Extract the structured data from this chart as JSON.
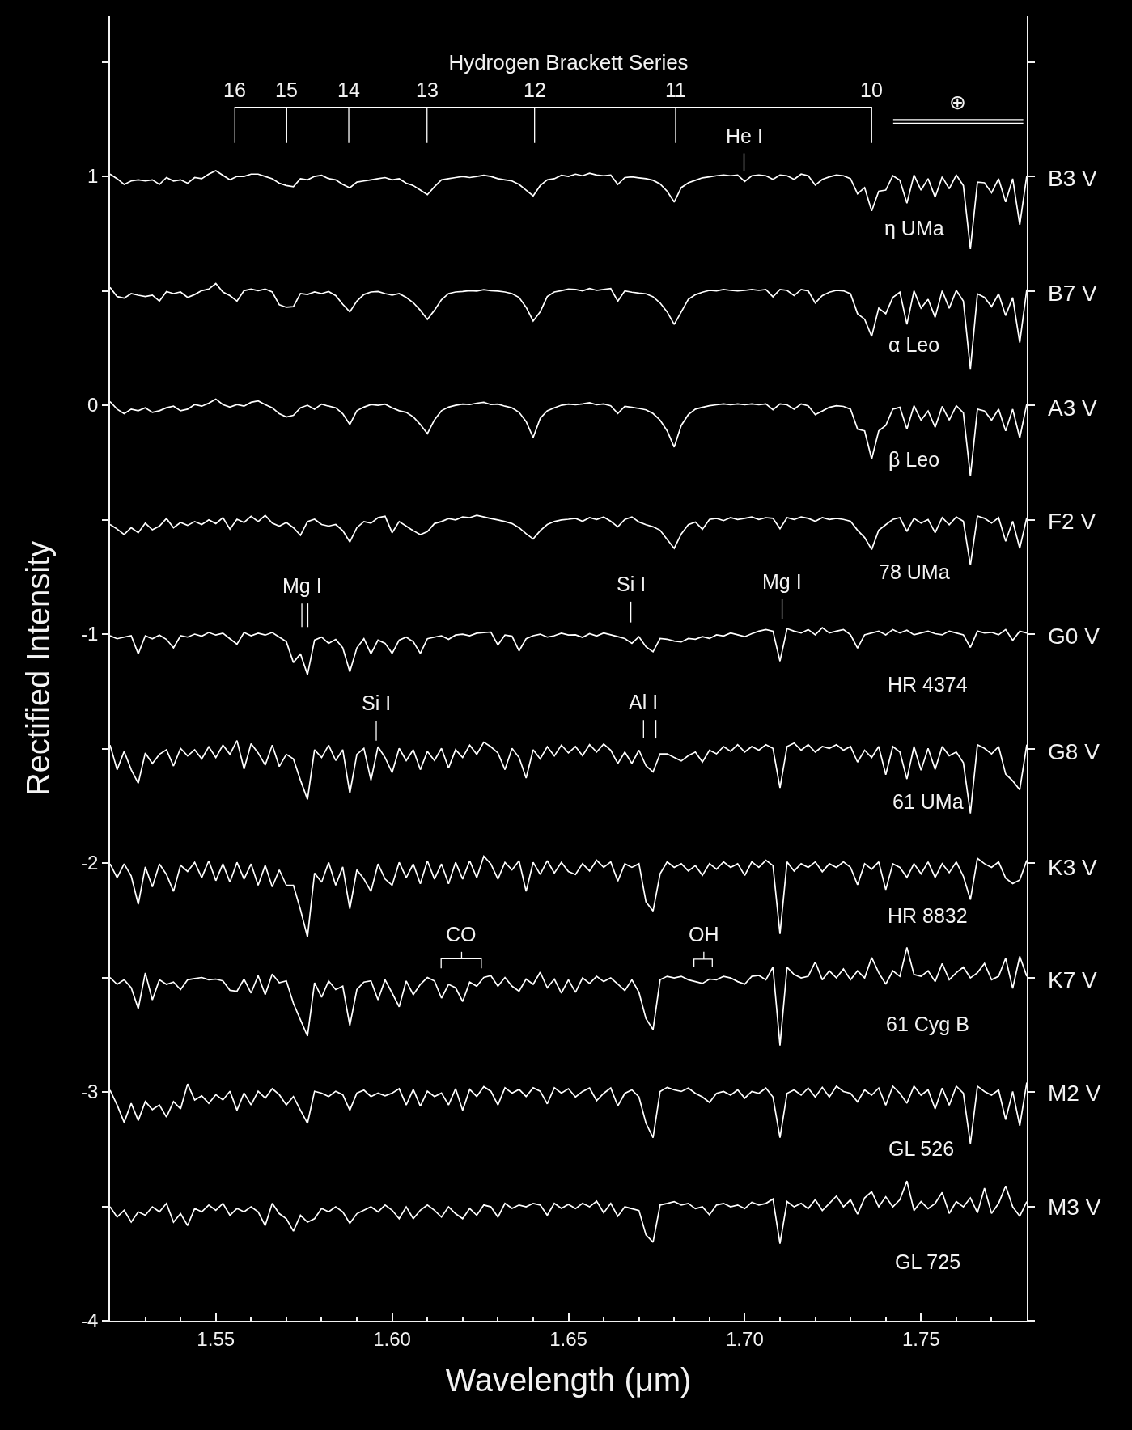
{
  "chart_data": {
    "type": "line",
    "title": "Hydrogen Brackett Series",
    "xlabel": "Wavelength (μm)",
    "ylabel": "Rectified Intensity",
    "xlim": [
      1.52,
      1.78
    ],
    "ylim": [
      -4,
      1.7
    ],
    "xticks": [
      {
        "value": 1.53,
        "label": null
      },
      {
        "value": 1.54,
        "label": null
      },
      1.55,
      {
        "value": 1.56,
        "label": null
      },
      {
        "value": 1.57,
        "label": null
      },
      {
        "value": 1.58,
        "label": null
      },
      {
        "value": 1.59,
        "label": null
      },
      {
        "value": 1.6,
        "label": "1.60"
      },
      {
        "value": 1.61,
        "label": null
      },
      {
        "value": 1.62,
        "label": null
      },
      {
        "value": 1.63,
        "label": null
      },
      {
        "value": 1.64,
        "label": null
      },
      1.65,
      {
        "value": 1.66,
        "label": null
      },
      {
        "value": 1.67,
        "label": null
      },
      {
        "value": 1.68,
        "label": null
      },
      {
        "value": 1.69,
        "label": null
      },
      {
        "value": 1.7,
        "label": "1.70"
      },
      {
        "value": 1.71,
        "label": null
      },
      {
        "value": 1.72,
        "label": null
      },
      {
        "value": 1.73,
        "label": null
      },
      {
        "value": 1.74,
        "label": null
      },
      1.75,
      {
        "value": 1.76,
        "label": null
      },
      {
        "value": 1.77,
        "label": null
      }
    ],
    "yticks": [
      -4,
      {
        "value": -3.5,
        "label": null
      },
      -3,
      {
        "value": -2.5,
        "label": null
      },
      -2,
      {
        "value": -1.5,
        "label": null
      },
      -1,
      {
        "value": -0.5,
        "label": null
      },
      0,
      {
        "value": 0.5,
        "label": null
      },
      1,
      {
        "value": 1.5,
        "label": null
      }
    ],
    "line_style": "solid",
    "legend": "right",
    "x": [
      1.52,
      1.522,
      1.524,
      1.526,
      1.528,
      1.53,
      1.532,
      1.534,
      1.536,
      1.538,
      1.54,
      1.542,
      1.544,
      1.546,
      1.548,
      1.55,
      1.552,
      1.554,
      1.556,
      1.558,
      1.56,
      1.562,
      1.564,
      1.566,
      1.568,
      1.57,
      1.572,
      1.574,
      1.576,
      1.578,
      1.58,
      1.582,
      1.584,
      1.586,
      1.588,
      1.59,
      1.592,
      1.594,
      1.596,
      1.598,
      1.6,
      1.602,
      1.604,
      1.606,
      1.608,
      1.61,
      1.612,
      1.614,
      1.616,
      1.618,
      1.62,
      1.622,
      1.624,
      1.626,
      1.628,
      1.63,
      1.632,
      1.634,
      1.636,
      1.638,
      1.64,
      1.642,
      1.644,
      1.646,
      1.648,
      1.65,
      1.652,
      1.654,
      1.656,
      1.658,
      1.66,
      1.662,
      1.664,
      1.666,
      1.668,
      1.67,
      1.672,
      1.674,
      1.676,
      1.678,
      1.68,
      1.682,
      1.684,
      1.686,
      1.688,
      1.69,
      1.692,
      1.694,
      1.696,
      1.698,
      1.7,
      1.702,
      1.704,
      1.706,
      1.708,
      1.71,
      1.712,
      1.714,
      1.716,
      1.718,
      1.72,
      1.722,
      1.724,
      1.726,
      1.728,
      1.73,
      1.732,
      1.734,
      1.736,
      1.738,
      1.74,
      1.742,
      1.744,
      1.746,
      1.748,
      1.75,
      1.752,
      1.754,
      1.756,
      1.758,
      1.76,
      1.762,
      1.764,
      1.766,
      1.768,
      1.77,
      1.772,
      1.774,
      1.776,
      1.778,
      1.78
    ],
    "series": [
      {
        "name": "B3 V",
        "color": "#ffffff",
        "values": [
          1.01,
          0.99,
          0.965,
          0.98,
          0.985,
          0.98,
          0.985,
          0.965,
          0.995,
          0.98,
          0.985,
          0.97,
          0.995,
          0.99,
          1.01,
          1.025,
          1.005,
          0.985,
          1.0,
          1.0,
          1.01,
          1.01,
          1.0,
          0.99,
          0.97,
          0.96,
          0.955,
          0.99,
          0.985,
          1.0,
          1.005,
          0.99,
          0.985,
          0.965,
          0.95,
          0.975,
          0.98,
          0.985,
          0.99,
          0.995,
          0.985,
          0.99,
          0.97,
          0.96,
          0.94,
          0.92,
          0.955,
          0.985,
          0.99,
          0.995,
          1.0,
          0.995,
          1.0,
          1.005,
          1.0,
          0.99,
          0.985,
          0.98,
          0.965,
          0.94,
          0.915,
          0.96,
          0.985,
          0.99,
          1.005,
          1.0,
          1.01,
          1.003,
          1.014,
          1.006,
          1.003,
          1.006,
          0.965,
          0.995,
          0.998,
          0.994,
          0.99,
          0.983,
          0.967,
          0.935,
          0.888,
          0.951,
          0.972,
          0.983,
          0.994,
          0.998,
          1.003,
          1.006,
          1.003,
          1.006,
          0.978,
          1.003,
          1.006,
          1.003,
          0.987,
          1.006,
          1.003,
          0.987,
          1.01,
          1.003,
          0.962,
          0.987,
          0.998,
          1.006,
          1.003,
          0.99,
          0.924,
          0.951,
          0.849,
          0.935,
          0.94,
          1.003,
          0.983,
          0.883,
          1.006,
          0.94,
          0.99,
          0.909,
          0.998,
          0.946,
          1.006,
          0.96,
          0.683,
          0.975,
          0.972,
          0.928,
          0.99,
          0.888,
          0.99,
          0.789,
          1.003
        ]
      },
      {
        "name": "B7 V",
        "color": "#ffffff",
        "values": [
          0.515,
          0.475,
          0.468,
          0.488,
          0.481,
          0.475,
          0.481,
          0.455,
          0.497,
          0.488,
          0.495,
          0.471,
          0.484,
          0.501,
          0.508,
          0.532,
          0.495,
          0.479,
          0.455,
          0.501,
          0.508,
          0.501,
          0.508,
          0.495,
          0.439,
          0.428,
          0.431,
          0.488,
          0.484,
          0.495,
          0.488,
          0.497,
          0.479,
          0.441,
          0.408,
          0.455,
          0.484,
          0.495,
          0.497,
          0.488,
          0.481,
          0.488,
          0.471,
          0.448,
          0.415,
          0.375,
          0.415,
          0.461,
          0.488,
          0.495,
          0.497,
          0.501,
          0.499,
          0.505,
          0.501,
          0.499,
          0.495,
          0.488,
          0.471,
          0.428,
          0.368,
          0.408,
          0.475,
          0.495,
          0.501,
          0.508,
          0.506,
          0.5,
          0.51,
          0.502,
          0.506,
          0.51,
          0.455,
          0.5,
          0.494,
          0.49,
          0.487,
          0.474,
          0.447,
          0.408,
          0.353,
          0.408,
          0.463,
          0.483,
          0.494,
          0.502,
          0.5,
          0.506,
          0.502,
          0.5,
          0.502,
          0.506,
          0.502,
          0.506,
          0.474,
          0.506,
          0.502,
          0.479,
          0.506,
          0.5,
          0.447,
          0.479,
          0.494,
          0.502,
          0.5,
          0.487,
          0.4,
          0.376,
          0.301,
          0.424,
          0.4,
          0.471,
          0.494,
          0.353,
          0.5,
          0.424,
          0.463,
          0.384,
          0.5,
          0.424,
          0.502,
          0.455,
          0.159,
          0.487,
          0.471,
          0.431,
          0.487,
          0.392,
          0.471,
          0.274,
          0.506
        ]
      },
      {
        "name": "A3 V",
        "color": "#ffffff",
        "values": [
          0.016,
          -0.017,
          -0.037,
          -0.017,
          -0.024,
          -0.011,
          -0.031,
          -0.024,
          -0.011,
          -0.004,
          -0.024,
          -0.017,
          0.003,
          -0.004,
          0.009,
          0.027,
          0.003,
          -0.008,
          0.003,
          -0.004,
          0.013,
          0.019,
          0.003,
          -0.011,
          -0.037,
          -0.051,
          -0.044,
          -0.011,
          0,
          -0.017,
          0.005,
          -0.004,
          -0.011,
          -0.037,
          -0.084,
          -0.024,
          -0.008,
          0.003,
          0,
          0.005,
          -0.011,
          -0.024,
          -0.031,
          -0.051,
          -0.084,
          -0.124,
          -0.064,
          -0.024,
          -0.008,
          0,
          0.005,
          0.003,
          0.009,
          0.013,
          0.003,
          0.005,
          -0.004,
          -0.011,
          -0.031,
          -0.071,
          -0.141,
          -0.057,
          -0.024,
          -0.011,
          0,
          0.005,
          0.002,
          0.006,
          0.011,
          0.002,
          0.006,
          -0.002,
          -0.036,
          -0.005,
          -0.009,
          -0.014,
          -0.02,
          -0.036,
          -0.065,
          -0.112,
          -0.183,
          -0.088,
          -0.041,
          -0.017,
          -0.009,
          -0.002,
          0.002,
          0.006,
          0.002,
          0.006,
          0.002,
          0.006,
          0.002,
          0.006,
          -0.02,
          0.006,
          0.002,
          -0.017,
          0.006,
          -0.002,
          -0.041,
          -0.025,
          -0.009,
          -0.002,
          -0.005,
          -0.017,
          -0.104,
          -0.112,
          -0.235,
          -0.112,
          -0.088,
          -0.017,
          -0.009,
          -0.104,
          -0.002,
          -0.065,
          -0.025,
          -0.096,
          -0.005,
          -0.065,
          -0.002,
          -0.033,
          -0.31,
          -0.017,
          -0.025,
          -0.065,
          -0.017,
          -0.112,
          -0.017,
          -0.143,
          0.006
        ]
      },
      {
        "name": "F2 V",
        "color": "#ffffff",
        "values": [
          -0.521,
          -0.541,
          -0.565,
          -0.535,
          -0.557,
          -0.515,
          -0.544,
          -0.528,
          -0.495,
          -0.535,
          -0.512,
          -0.525,
          -0.508,
          -0.521,
          -0.501,
          -0.517,
          -0.491,
          -0.541,
          -0.498,
          -0.512,
          -0.485,
          -0.508,
          -0.481,
          -0.515,
          -0.528,
          -0.512,
          -0.535,
          -0.568,
          -0.508,
          -0.498,
          -0.521,
          -0.528,
          -0.521,
          -0.548,
          -0.597,
          -0.535,
          -0.508,
          -0.515,
          -0.491,
          -0.485,
          -0.557,
          -0.508,
          -0.528,
          -0.548,
          -0.565,
          -0.552,
          -0.517,
          -0.508,
          -0.495,
          -0.501,
          -0.488,
          -0.491,
          -0.481,
          -0.488,
          -0.495,
          -0.501,
          -0.508,
          -0.517,
          -0.535,
          -0.561,
          -0.584,
          -0.548,
          -0.521,
          -0.508,
          -0.501,
          -0.498,
          -0.494,
          -0.507,
          -0.491,
          -0.499,
          -0.488,
          -0.507,
          -0.531,
          -0.499,
          -0.488,
          -0.51,
          -0.522,
          -0.531,
          -0.546,
          -0.586,
          -0.625,
          -0.562,
          -0.522,
          -0.51,
          -0.542,
          -0.499,
          -0.494,
          -0.504,
          -0.491,
          -0.499,
          -0.494,
          -0.488,
          -0.499,
          -0.491,
          -0.494,
          -0.539,
          -0.491,
          -0.499,
          -0.488,
          -0.494,
          -0.507,
          -0.491,
          -0.499,
          -0.494,
          -0.499,
          -0.507,
          -0.546,
          -0.578,
          -0.63,
          -0.546,
          -0.522,
          -0.499,
          -0.491,
          -0.551,
          -0.494,
          -0.515,
          -0.499,
          -0.557,
          -0.491,
          -0.522,
          -0.488,
          -0.507,
          -0.699,
          -0.484,
          -0.494,
          -0.515,
          -0.491,
          -0.594,
          -0.507,
          -0.625,
          -0.491
        ]
      },
      {
        "name": "G0 V",
        "color": "#ffffff",
        "values": [
          -1.007,
          -1.02,
          -1.013,
          -1.007,
          -1.086,
          -1.007,
          -1.02,
          -1.004,
          -1.023,
          -1.06,
          -1.007,
          -1.013,
          -1.0,
          -1.009,
          -0.993,
          -1.004,
          -0.996,
          -1.02,
          -1.044,
          -0.993,
          -1.007,
          -0.996,
          -1.004,
          -0.993,
          -1.013,
          -1.033,
          -1.124,
          -1.086,
          -1.177,
          -1.026,
          -1.013,
          -1.04,
          -1.023,
          -1.06,
          -1.164,
          -1.06,
          -1.02,
          -1.086,
          -1.026,
          -1.04,
          -1.084,
          -1.026,
          -1.013,
          -1.033,
          -1.084,
          -1.02,
          -1.013,
          -1.007,
          -1.023,
          -1.004,
          -1.0,
          -1.007,
          -0.996,
          -0.993,
          -0.991,
          -1.047,
          -1.004,
          -1.009,
          -1.073,
          -1.02,
          -1.007,
          -1.0,
          -1.013,
          -1.007,
          -0.996,
          -1.004,
          -1.003,
          -1.014,
          -0.998,
          -1.008,
          -0.995,
          -1.003,
          -1.011,
          -1.019,
          -1.04,
          -1.011,
          -1.055,
          -1.077,
          -1.019,
          -1.022,
          -1.03,
          -1.034,
          -1.019,
          -1.022,
          -1.011,
          -1.019,
          -1.003,
          -1.008,
          -0.995,
          -1.003,
          -1.011,
          -0.998,
          -0.987,
          -0.98,
          -0.987,
          -1.118,
          -0.976,
          -0.987,
          -0.995,
          -0.98,
          -1.003,
          -0.972,
          -0.995,
          -0.987,
          -0.98,
          -1.003,
          -1.061,
          -1.003,
          -0.995,
          -0.987,
          -1.003,
          -0.98,
          -0.995,
          -0.983,
          -1.003,
          -0.995,
          -0.987,
          -0.998,
          -1.003,
          -0.987,
          -0.995,
          -1.003,
          -1.058,
          -0.987,
          -0.995,
          -0.992,
          -1.003,
          -0.98,
          -1.027,
          -0.987,
          -0.995
        ]
      },
      {
        "name": "G8 V",
        "color": "#ffffff",
        "values": [
          -1.485,
          -1.592,
          -1.512,
          -1.592,
          -1.651,
          -1.519,
          -1.565,
          -1.525,
          -1.505,
          -1.576,
          -1.499,
          -1.532,
          -1.505,
          -1.545,
          -1.492,
          -1.539,
          -1.485,
          -1.525,
          -1.465,
          -1.589,
          -1.479,
          -1.519,
          -1.572,
          -1.485,
          -1.578,
          -1.525,
          -1.545,
          -1.638,
          -1.722,
          -1.505,
          -1.539,
          -1.485,
          -1.552,
          -1.505,
          -1.695,
          -1.525,
          -1.499,
          -1.638,
          -1.492,
          -1.539,
          -1.605,
          -1.499,
          -1.552,
          -1.505,
          -1.592,
          -1.512,
          -1.552,
          -1.499,
          -1.585,
          -1.505,
          -1.539,
          -1.485,
          -1.525,
          -1.472,
          -1.492,
          -1.519,
          -1.592,
          -1.499,
          -1.539,
          -1.629,
          -1.505,
          -1.545,
          -1.492,
          -1.532,
          -1.485,
          -1.519,
          -1.491,
          -1.531,
          -1.483,
          -1.515,
          -1.48,
          -1.507,
          -1.565,
          -1.515,
          -1.565,
          -1.507,
          -1.575,
          -1.602,
          -1.523,
          -1.523,
          -1.539,
          -1.554,
          -1.531,
          -1.515,
          -1.559,
          -1.507,
          -1.523,
          -1.491,
          -1.512,
          -1.483,
          -1.515,
          -1.491,
          -1.507,
          -1.483,
          -1.499,
          -1.672,
          -1.491,
          -1.476,
          -1.507,
          -1.483,
          -1.515,
          -1.491,
          -1.499,
          -1.483,
          -1.507,
          -1.491,
          -1.559,
          -1.507,
          -1.539,
          -1.491,
          -1.614,
          -1.491,
          -1.515,
          -1.633,
          -1.491,
          -1.594,
          -1.499,
          -1.591,
          -1.491,
          -1.531,
          -1.515,
          -1.562,
          -1.783,
          -1.483,
          -1.499,
          -1.523,
          -1.491,
          -1.611,
          -1.641,
          -1.68,
          -1.483
        ]
      },
      {
        "name": "K3 V",
        "color": "#ffffff",
        "values": [
          -2.004,
          -2.064,
          -2.004,
          -2.057,
          -2.18,
          -2.017,
          -2.104,
          -2.004,
          -2.05,
          -2.124,
          -2.01,
          -2.037,
          -1.997,
          -2.064,
          -1.99,
          -2.077,
          -2.004,
          -2.084,
          -1.997,
          -2.07,
          -2.004,
          -2.097,
          -2.01,
          -2.104,
          -2.03,
          -2.097,
          -2.097,
          -2.204,
          -2.323,
          -2.044,
          -2.084,
          -1.997,
          -2.097,
          -2.017,
          -2.2,
          -2.03,
          -2.07,
          -2.124,
          -2.004,
          -2.07,
          -2.097,
          -1.997,
          -2.064,
          -2.004,
          -2.091,
          -1.99,
          -2.07,
          -2.004,
          -2.091,
          -1.997,
          -2.07,
          -1.99,
          -2.064,
          -1.97,
          -2.004,
          -2.07,
          -1.997,
          -2.03,
          -1.99,
          -2.124,
          -1.997,
          -2.05,
          -1.99,
          -2.044,
          -1.997,
          -2.037,
          -2.05,
          -2.003,
          -2.035,
          -1.988,
          -2.019,
          -1.995,
          -2.079,
          -2.003,
          -2.019,
          -2.003,
          -2.17,
          -2.21,
          -2.047,
          -1.995,
          -2.019,
          -2.003,
          -2.035,
          -2.011,
          -2.054,
          -2.003,
          -2.027,
          -1.995,
          -2.019,
          -2.003,
          -2.054,
          -1.995,
          -2.019,
          -1.988,
          -2.011,
          -2.31,
          -1.995,
          -2.035,
          -2.003,
          -2.019,
          -1.995,
          -2.038,
          -2.003,
          -2.019,
          -1.995,
          -2.019,
          -2.095,
          -2.003,
          -2.027,
          -1.995,
          -2.117,
          -2.003,
          -2.019,
          -2.063,
          -2.003,
          -2.047,
          -1.995,
          -2.063,
          -2.003,
          -2.042,
          -1.995,
          -2.058,
          -2.16,
          -1.98,
          -2.003,
          -2.019,
          -1.995,
          -2.066,
          -2.09,
          -2.074,
          -1.988
        ]
      },
      {
        "name": "K7 V",
        "color": "#ffffff",
        "values": [
          -2.5,
          -2.53,
          -2.51,
          -2.545,
          -2.636,
          -2.48,
          -2.598,
          -2.51,
          -2.53,
          -2.52,
          -2.553,
          -2.51,
          -2.505,
          -2.5,
          -2.51,
          -2.507,
          -2.515,
          -2.556,
          -2.56,
          -2.507,
          -2.568,
          -2.492,
          -2.575,
          -2.485,
          -2.523,
          -2.515,
          -2.613,
          -2.685,
          -2.756,
          -2.523,
          -2.586,
          -2.515,
          -2.553,
          -2.538,
          -2.71,
          -2.553,
          -2.52,
          -2.515,
          -2.598,
          -2.51,
          -2.568,
          -2.628,
          -2.515,
          -2.575,
          -2.53,
          -2.5,
          -2.515,
          -2.59,
          -2.53,
          -2.545,
          -2.605,
          -2.52,
          -2.538,
          -2.5,
          -2.492,
          -2.538,
          -2.5,
          -2.538,
          -2.56,
          -2.507,
          -2.53,
          -2.477,
          -2.545,
          -2.507,
          -2.568,
          -2.51,
          -2.565,
          -2.502,
          -2.526,
          -2.495,
          -2.518,
          -2.502,
          -2.529,
          -2.557,
          -2.51,
          -2.565,
          -2.68,
          -2.728,
          -2.51,
          -2.495,
          -2.502,
          -2.495,
          -2.51,
          -2.518,
          -2.526,
          -2.507,
          -2.51,
          -2.495,
          -2.502,
          -2.518,
          -2.529,
          -2.495,
          -2.491,
          -2.51,
          -2.455,
          -2.797,
          -2.455,
          -2.487,
          -2.502,
          -2.495,
          -2.432,
          -2.51,
          -2.471,
          -2.502,
          -2.463,
          -2.51,
          -2.471,
          -2.502,
          -2.413,
          -2.479,
          -2.529,
          -2.471,
          -2.495,
          -2.369,
          -2.487,
          -2.495,
          -2.471,
          -2.518,
          -2.439,
          -2.51,
          -2.479,
          -2.455,
          -2.502,
          -2.479,
          -2.439,
          -2.51,
          -2.495,
          -2.416,
          -2.548,
          -2.408,
          -2.495
        ]
      },
      {
        "name": "M2 V",
        "color": "#ffffff",
        "values": [
          -2.992,
          -3.057,
          -3.133,
          -3.05,
          -3.125,
          -3.042,
          -3.077,
          -3.057,
          -3.11,
          -3.042,
          -3.074,
          -2.965,
          -3.035,
          -3.017,
          -3.05,
          -3.012,
          -3.035,
          -2.997,
          -3.08,
          -3.005,
          -3.057,
          -2.997,
          -3.027,
          -2.986,
          -3.012,
          -3.057,
          -3.02,
          -3.08,
          -3.137,
          -2.997,
          -3.005,
          -3.02,
          -2.997,
          -3.012,
          -3.08,
          -3.005,
          -2.992,
          -3.02,
          -3.005,
          -3.017,
          -3.005,
          -2.986,
          -3.057,
          -2.989,
          -3.062,
          -2.997,
          -3.02,
          -3.005,
          -3.057,
          -2.986,
          -3.08,
          -2.989,
          -3.02,
          -2.977,
          -2.997,
          -3.057,
          -2.982,
          -3.005,
          -2.989,
          -3.02,
          -2.982,
          -2.997,
          -3.052,
          -2.982,
          -3.005,
          -2.986,
          -3.022,
          -2.998,
          -2.983,
          -3.038,
          -3.006,
          -2.983,
          -3.061,
          -3.006,
          -2.991,
          -3.022,
          -3.137,
          -3.2,
          -2.998,
          -2.98,
          -2.991,
          -2.998,
          -2.983,
          -3.006,
          -3.022,
          -3.046,
          -3.006,
          -2.998,
          -3.014,
          -2.991,
          -3.027,
          -2.998,
          -3.006,
          -2.983,
          -3.022,
          -3.2,
          -3.006,
          -2.991,
          -3.014,
          -2.983,
          -3.022,
          -2.98,
          -3.022,
          -2.975,
          -2.998,
          -3.006,
          -3.043,
          -2.991,
          -3.014,
          -2.983,
          -3.058,
          -2.975,
          -3.006,
          -3.049,
          -2.975,
          -3.014,
          -2.991,
          -3.074,
          -2.983,
          -3.058,
          -2.975,
          -3.006,
          -3.227,
          -2.975,
          -2.998,
          -3.014,
          -2.991,
          -3.121,
          -2.998,
          -3.148,
          -2.959
        ]
      },
      {
        "name": "M3 V",
        "color": "#ffffff",
        "values": [
          -3.502,
          -3.547,
          -3.517,
          -3.569,
          -3.524,
          -3.539,
          -3.502,
          -3.524,
          -3.487,
          -3.569,
          -3.532,
          -3.584,
          -3.509,
          -3.524,
          -3.494,
          -3.517,
          -3.487,
          -3.539,
          -3.509,
          -3.524,
          -3.502,
          -3.524,
          -3.584,
          -3.487,
          -3.532,
          -3.554,
          -3.608,
          -3.539,
          -3.569,
          -3.554,
          -3.509,
          -3.524,
          -3.502,
          -3.524,
          -3.574,
          -3.532,
          -3.517,
          -3.502,
          -3.524,
          -3.494,
          -3.517,
          -3.554,
          -3.502,
          -3.554,
          -3.517,
          -3.494,
          -3.517,
          -3.547,
          -3.502,
          -3.532,
          -3.554,
          -3.509,
          -3.539,
          -3.494,
          -3.502,
          -3.547,
          -3.487,
          -3.509,
          -3.494,
          -3.502,
          -3.487,
          -3.494,
          -3.539,
          -3.487,
          -3.509,
          -3.491,
          -3.51,
          -3.487,
          -3.502,
          -3.477,
          -3.528,
          -3.487,
          -3.543,
          -3.502,
          -3.51,
          -3.518,
          -3.625,
          -3.657,
          -3.494,
          -3.487,
          -3.479,
          -3.494,
          -3.487,
          -3.51,
          -3.502,
          -3.537,
          -3.494,
          -3.487,
          -3.502,
          -3.494,
          -3.51,
          -3.482,
          -3.494,
          -3.487,
          -3.468,
          -3.663,
          -3.479,
          -3.502,
          -3.487,
          -3.51,
          -3.471,
          -3.518,
          -3.487,
          -3.455,
          -3.502,
          -3.471,
          -3.534,
          -3.463,
          -3.436,
          -3.502,
          -3.458,
          -3.502,
          -3.471,
          -3.389,
          -3.518,
          -3.479,
          -3.51,
          -3.487,
          -3.439,
          -3.531,
          -3.479,
          -3.502,
          -3.463,
          -3.528,
          -3.42,
          -3.531,
          -3.487,
          -3.411,
          -3.502,
          -3.543,
          -3.479
        ]
      },
      {
        "color": "#ffffff",
        "x": [
          1.5554,
          1.5554,
          1.736,
          1.736,
          null,
          1.5701,
          1.5701,
          null,
          1.5877,
          1.5877,
          null,
          1.6099,
          1.6099,
          null,
          1.6404,
          1.6404,
          null,
          1.6804,
          1.6804
        ],
        "values": [
          1.146,
          1.302,
          1.302,
          1.146,
          null,
          1.302,
          1.146,
          null,
          1.302,
          1.146,
          null,
          1.302,
          1.146,
          null,
          1.302,
          1.146,
          null,
          1.302,
          1.146
        ]
      },
      {
        "color": "#ffffff",
        "x": [
          1.6998,
          1.6998
        ],
        "values": [
          1.022,
          1.101
        ]
      },
      {
        "color": "#ffffff",
        "x": [
          1.7421,
          1.7603,
          1.779,
          null,
          1.7421,
          1.779
        ],
        "values": [
          1.248,
          1.248,
          1.248,
          null,
          1.232,
          1.232
        ]
      },
      {
        "color": "#ffffff",
        "x": [
          1.5744,
          1.5744,
          null,
          1.5761,
          1.5761
        ],
        "values": [
          -0.866,
          -0.969,
          null,
          -0.866,
          -0.969
        ]
      },
      {
        "color": "#ffffff",
        "x": [
          1.6677,
          1.6677
        ],
        "values": [
          -0.858,
          -0.949
        ]
      },
      {
        "color": "#ffffff",
        "x": [
          1.7106,
          1.7106
        ],
        "values": [
          -0.847,
          -0.933
        ]
      },
      {
        "color": "#ffffff",
        "x": [
          1.5955,
          1.5955
        ],
        "values": [
          -1.378,
          -1.465
        ]
      },
      {
        "color": "#ffffff",
        "x": [
          1.6713,
          1.6713,
          null,
          1.6748,
          1.6748
        ],
        "values": [
          -1.375,
          -1.456,
          null,
          -1.375,
          -1.456
        ]
      },
      {
        "color": "#ffffff",
        "x": [
          1.6139,
          1.6139,
          1.6253,
          1.6253,
          null,
          1.6197,
          1.6197
        ],
        "values": [
          -2.46,
          -2.418,
          -2.418,
          -2.46,
          null,
          -2.418,
          -2.388
        ]
      },
      {
        "color": "#ffffff",
        "x": [
          1.6856,
          1.6856,
          1.6908,
          1.6908,
          null,
          1.6884,
          1.6884
        ],
        "values": [
          -2.452,
          -2.42,
          -2.42,
          -2.452,
          null,
          -2.42,
          -2.388
        ]
      }
    ],
    "annotations": [
      {
        "text": "16",
        "x": 1.5554,
        "y": 1.302
      },
      {
        "text": "15",
        "x": 1.5701,
        "y": 1.302
      },
      {
        "text": "14",
        "x": 1.5877,
        "y": 1.302
      },
      {
        "text": "13",
        "x": 1.6099,
        "y": 1.302
      },
      {
        "text": "12",
        "x": 1.6404,
        "y": 1.302
      },
      {
        "text": "11",
        "x": 1.6804,
        "y": 1.302
      },
      {
        "text": "10",
        "x": 1.736,
        "y": 1.302
      },
      {
        "text": "⊕",
        "x": 1.7603,
        "y": 1.248
      },
      {
        "text": "He I",
        "x": 1.6998,
        "y": 1.101
      },
      {
        "text": "Mg I",
        "x": 1.5744,
        "y": -0.866
      },
      {
        "text": "Si I",
        "x": 1.6677,
        "y": -0.858
      },
      {
        "text": "Mg I",
        "x": 1.7106,
        "y": -0.847
      },
      {
        "text": "Si I",
        "x": 1.5955,
        "y": -1.378
      },
      {
        "text": "Al I",
        "x": 1.6713,
        "y": -1.375
      },
      {
        "text": "CO",
        "x": 1.6197,
        "y": -2.388
      },
      {
        "text": "OH",
        "x": 1.6884,
        "y": -2.388
      },
      {
        "text": "η UMa",
        "x": 1.748,
        "y": 1.006
      },
      {
        "text": "α Leo",
        "x": 1.748,
        "y": 0.5
      },
      {
        "text": "β Leo",
        "x": 1.748,
        "y": -0.002
      },
      {
        "text": "78 UMa",
        "x": 1.748,
        "y": -0.494
      },
      {
        "text": "HR 4374",
        "x": 1.752,
        "y": -0.987
      },
      {
        "text": "61 UMa",
        "x": 1.752,
        "y": -1.499
      },
      {
        "text": "HR 8832",
        "x": 1.752,
        "y": -1.995
      },
      {
        "text": "61 Cyg B",
        "x": 1.752,
        "y": -2.471
      },
      {
        "text": "GL 526",
        "x": 1.75,
        "y": -3.014
      },
      {
        "text": "GL 725",
        "x": 1.752,
        "y": -3.51
      }
    ]
  }
}
